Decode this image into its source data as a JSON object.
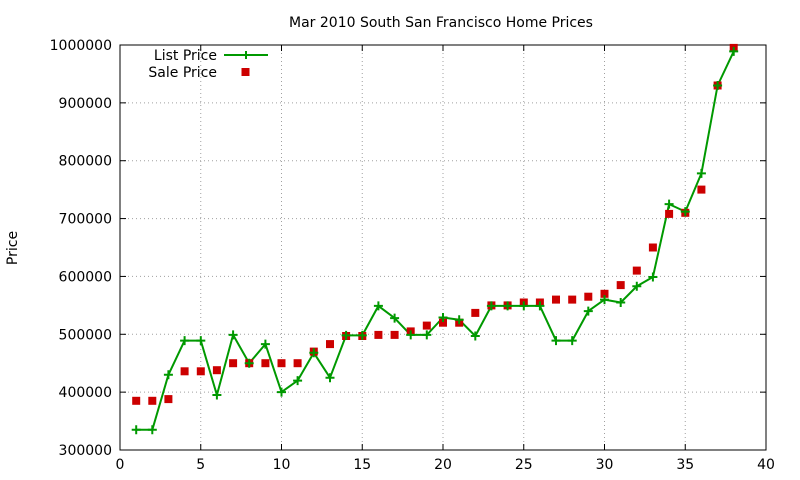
{
  "chart_data": {
    "type": "line",
    "title": "Mar 2010 South San Francisco Home Prices",
    "xlabel": "",
    "ylabel": "Price",
    "xlim": [
      0,
      40
    ],
    "ylim": [
      300000,
      1000000
    ],
    "xticks": [
      0,
      5,
      10,
      15,
      20,
      25,
      30,
      35,
      40
    ],
    "yticks": [
      300000,
      400000,
      500000,
      600000,
      700000,
      800000,
      900000,
      1000000
    ],
    "grid": true,
    "legend_position": "top-left",
    "x": [
      1,
      2,
      3,
      4,
      5,
      6,
      7,
      8,
      9,
      10,
      11,
      12,
      13,
      14,
      15,
      16,
      17,
      18,
      19,
      20,
      21,
      22,
      23,
      24,
      25,
      26,
      27,
      28,
      29,
      30,
      31,
      32,
      33,
      34,
      35,
      36,
      37,
      38
    ],
    "series": [
      {
        "name": "List Price",
        "style": "line-plus",
        "color": "#009900",
        "values": [
          335000,
          335000,
          430000,
          489000,
          489000,
          395000,
          499000,
          450000,
          483000,
          400000,
          420000,
          468000,
          425000,
          498000,
          498000,
          549000,
          528000,
          499000,
          499000,
          529000,
          525000,
          497000,
          549000,
          549000,
          549000,
          549000,
          489000,
          489000,
          540000,
          560000,
          555000,
          583000,
          599000,
          725000,
          712000,
          778000,
          930000,
          989000
        ]
      },
      {
        "name": "Sale Price",
        "style": "square-marker",
        "color": "#cc0000",
        "values": [
          385000,
          385000,
          388000,
          436000,
          436000,
          438000,
          450000,
          450000,
          450000,
          450000,
          450000,
          470000,
          483000,
          497000,
          497000,
          499000,
          499000,
          505000,
          515000,
          520000,
          520000,
          537000,
          550000,
          550000,
          555000,
          555000,
          560000,
          560000,
          565000,
          570000,
          585000,
          610000,
          650000,
          708000,
          710000,
          750000,
          930000,
          995000
        ]
      }
    ]
  }
}
